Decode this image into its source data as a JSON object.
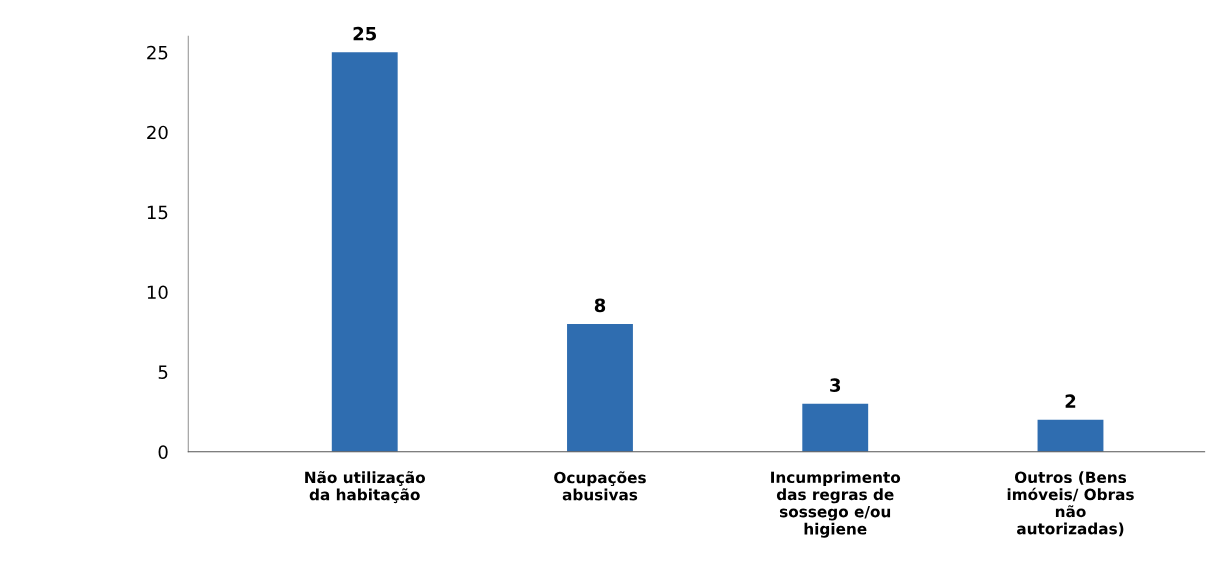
{
  "chart_data": {
    "type": "bar",
    "categories": [
      "Não utilização da habitação",
      "Ocupações abusivas",
      "Incumprimento das regras de sossego e/ou higiene",
      "Outros (Bens imóveis/ Obras não autorizadas)"
    ],
    "values": [
      25,
      8,
      3,
      2
    ],
    "color": "#2f6db0",
    "ylim": [
      0,
      26
    ],
    "yticks": [
      0,
      5,
      10,
      15,
      20,
      25
    ],
    "data_labels": true,
    "grid": false,
    "legend": false
  }
}
